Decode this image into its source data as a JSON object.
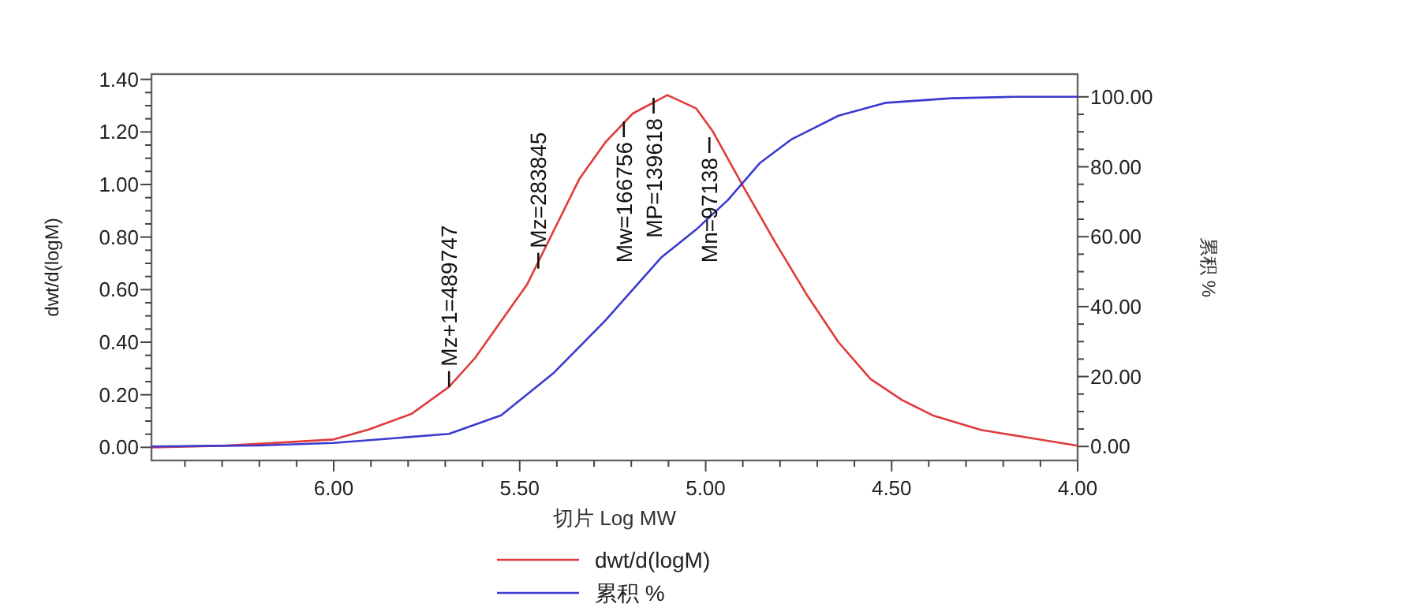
{
  "chart_data": {
    "type": "line",
    "xlabel": "切片 Log MW",
    "ylabel": "dwt/d(logM)",
    "y2label": "累积 %",
    "xlim": [
      6.49,
      4.0
    ],
    "xticks": [
      {
        "value": 6.4,
        "label": null
      },
      {
        "value": 6.3,
        "label": null
      },
      {
        "value": 6.2,
        "label": null
      },
      {
        "value": 6.1,
        "label": null
      },
      {
        "value": 6.0,
        "label": "6.00"
      },
      {
        "value": 5.9,
        "label": null
      },
      {
        "value": 5.8,
        "label": null
      },
      {
        "value": 5.7,
        "label": null
      },
      {
        "value": 5.6,
        "label": null
      },
      {
        "value": 5.5,
        "label": "5.50"
      },
      {
        "value": 5.4,
        "label": null
      },
      {
        "value": 5.3,
        "label": null
      },
      {
        "value": 5.2,
        "label": null
      },
      {
        "value": 5.1,
        "label": null
      },
      {
        "value": 5.0,
        "label": "5.00"
      },
      {
        "value": 4.9,
        "label": null
      },
      {
        "value": 4.8,
        "label": null
      },
      {
        "value": 4.7,
        "label": null
      },
      {
        "value": 4.6,
        "label": null
      },
      {
        "value": 4.5,
        "label": "4.50"
      },
      {
        "value": 4.4,
        "label": null
      },
      {
        "value": 4.3,
        "label": null
      },
      {
        "value": 4.2,
        "label": null
      },
      {
        "value": 4.1,
        "label": null
      },
      {
        "value": 4.0,
        "label": "4.00"
      }
    ],
    "ylim": [
      -0.05,
      1.42
    ],
    "yticks": [
      {
        "value": 0,
        "label": "0.00"
      },
      {
        "value": 0.05,
        "label": null
      },
      {
        "value": 0.1,
        "label": null
      },
      {
        "value": 0.15,
        "label": null
      },
      {
        "value": 0.2,
        "label": "0.20"
      },
      {
        "value": 0.25,
        "label": null
      },
      {
        "value": 0.3,
        "label": null
      },
      {
        "value": 0.35,
        "label": null
      },
      {
        "value": 0.4,
        "label": "0.40"
      },
      {
        "value": 0.45,
        "label": null
      },
      {
        "value": 0.5,
        "label": null
      },
      {
        "value": 0.55,
        "label": null
      },
      {
        "value": 0.6,
        "label": "0.60"
      },
      {
        "value": 0.65,
        "label": null
      },
      {
        "value": 0.7,
        "label": null
      },
      {
        "value": 0.75,
        "label": null
      },
      {
        "value": 0.8,
        "label": "0.80"
      },
      {
        "value": 0.85,
        "label": null
      },
      {
        "value": 0.9,
        "label": null
      },
      {
        "value": 0.95,
        "label": null
      },
      {
        "value": 1.0,
        "label": "1.00"
      },
      {
        "value": 1.05,
        "label": null
      },
      {
        "value": 1.1,
        "label": null
      },
      {
        "value": 1.15,
        "label": null
      },
      {
        "value": 1.2,
        "label": "1.20"
      },
      {
        "value": 1.25,
        "label": null
      },
      {
        "value": 1.3,
        "label": null
      },
      {
        "value": 1.35,
        "label": null
      },
      {
        "value": 1.4,
        "label": "1.40"
      }
    ],
    "y2lim": [
      -4,
      106.5
    ],
    "y2ticks": [
      {
        "value": 0,
        "label": "0.00"
      },
      {
        "value": 5,
        "label": null
      },
      {
        "value": 10,
        "label": null
      },
      {
        "value": 15,
        "label": null
      },
      {
        "value": 20,
        "label": "20.00"
      },
      {
        "value": 25,
        "label": null
      },
      {
        "value": 30,
        "label": null
      },
      {
        "value": 35,
        "label": null
      },
      {
        "value": 40,
        "label": "40.00"
      },
      {
        "value": 45,
        "label": null
      },
      {
        "value": 50,
        "label": null
      },
      {
        "value": 55,
        "label": null
      },
      {
        "value": 60,
        "label": "60.00"
      },
      {
        "value": 65,
        "label": null
      },
      {
        "value": 70,
        "label": null
      },
      {
        "value": 75,
        "label": null
      },
      {
        "value": 80,
        "label": "80.00"
      },
      {
        "value": 85,
        "label": null
      },
      {
        "value": 90,
        "label": null
      },
      {
        "value": 95,
        "label": null
      },
      {
        "value": 100,
        "label": "100.00"
      }
    ],
    "series": [
      {
        "name": "dwt/d(logM)",
        "color": "#e03a3a",
        "x": [
          6.49,
          6.3,
          6.19,
          6.0,
          5.906,
          5.79,
          5.69,
          5.62,
          5.55,
          5.48,
          5.41,
          5.34,
          5.27,
          5.196,
          5.103,
          5.026,
          4.98,
          4.898,
          4.813,
          4.728,
          4.643,
          4.557,
          4.472,
          4.387,
          4.26,
          4.13,
          4.0
        ],
        "values": [
          0.0,
          0.006,
          0.014,
          0.03,
          0.068,
          0.128,
          0.23,
          0.34,
          0.48,
          0.62,
          0.82,
          1.02,
          1.16,
          1.27,
          1.34,
          1.29,
          1.2,
          0.99,
          0.78,
          0.58,
          0.4,
          0.26,
          0.18,
          0.12,
          0.066,
          0.036,
          0.006
        ]
      },
      {
        "name": "累积 %",
        "color": "#3a3ad0",
        "axis": "y2",
        "x": [
          6.49,
          6.2,
          6.0,
          5.69,
          5.55,
          5.41,
          5.27,
          5.12,
          5.026,
          4.94,
          4.855,
          4.77,
          4.643,
          4.515,
          4.34,
          4.17,
          4.0
        ],
        "values": [
          0.0,
          0.3,
          1.0,
          3.6,
          8.9,
          20.9,
          36.0,
          54.0,
          62.0,
          70.5,
          81.0,
          87.8,
          94.6,
          98.3,
          99.6,
          100.0,
          100.0
        ]
      }
    ],
    "annotations": [
      {
        "text": "Mz+1=489747",
        "x": 5.69,
        "y": 0.23
      },
      {
        "text": "Mz=283845",
        "x": 5.45,
        "y": 0.68
      },
      {
        "text": "Mw=166756",
        "x": 5.22,
        "y": 1.24
      },
      {
        "text": "MP=139618",
        "x": 5.14,
        "y": 1.33
      },
      {
        "text": "Mn=97138",
        "x": 4.99,
        "y": 1.18
      }
    ],
    "legend": "bottom",
    "grid": false
  }
}
